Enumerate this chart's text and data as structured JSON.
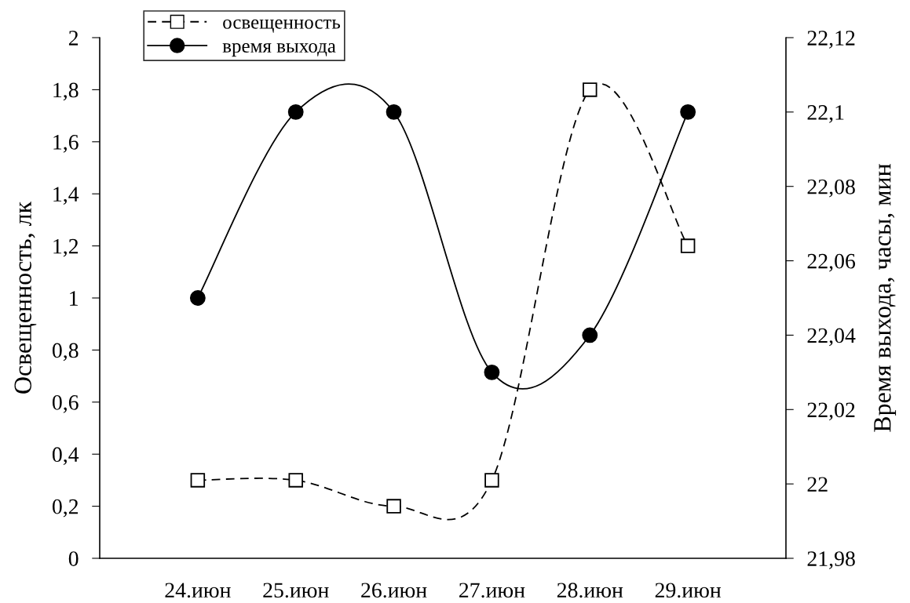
{
  "chart_data": {
    "type": "line",
    "ylabel": "Освещенность, лк",
    "y2label": "Время выхода, часы, мин",
    "categories": [
      "24.июн",
      "25.июн",
      "26.июн",
      "27.июн",
      "28.июн",
      "29.июн"
    ],
    "series": [
      {
        "name": "освещенность",
        "color": "#000000",
        "values": [
          0.3,
          0.3,
          0.2,
          0.3,
          1.8,
          1.2
        ],
        "marker": "square",
        "line_style": "dashed"
      },
      {
        "name": "время выхода",
        "color": "#000000",
        "values": [
          22.05,
          22.1,
          22.1,
          22.03,
          22.04,
          22.1
        ],
        "marker": "circle",
        "line_style": "solid",
        "axis": "y2"
      }
    ],
    "ylim": [
      0,
      2
    ],
    "yticks": [
      0,
      {
        "value": 0.2,
        "label": "0,2"
      },
      {
        "value": 0.4,
        "label": "0,4"
      },
      {
        "value": 0.6,
        "label": "0,6"
      },
      {
        "value": 0.8,
        "label": "0,8"
      },
      1,
      {
        "value": 1.2,
        "label": "1,2"
      },
      {
        "value": 1.4,
        "label": "1,4"
      },
      {
        "value": 1.6,
        "label": "1,6"
      },
      {
        "value": 1.8,
        "label": "1,8"
      },
      2
    ],
    "y2lim": [
      21.98,
      22.12
    ],
    "y2ticks": [
      {
        "value": 21.98,
        "label": "21,98"
      },
      22,
      {
        "value": 22.02,
        "label": "22,02"
      },
      {
        "value": 22.04,
        "label": "22,04"
      },
      {
        "value": 22.06,
        "label": "22,06"
      },
      {
        "value": 22.08,
        "label": "22,08"
      },
      {
        "value": 22.1,
        "label": "22,1"
      },
      {
        "value": 22.12,
        "label": "22,12"
      }
    ],
    "grid": false,
    "legend": "top left"
  }
}
